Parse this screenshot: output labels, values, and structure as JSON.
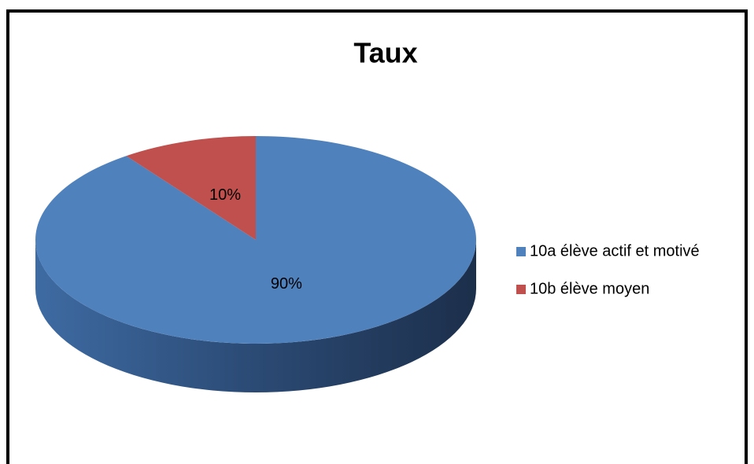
{
  "chart_data": {
    "type": "pie",
    "title": "Taux",
    "categories": [
      "10a élève actif et motivé",
      "10b élève moyen"
    ],
    "values": [
      90,
      10
    ],
    "value_labels": [
      "90%",
      "10%"
    ],
    "colors": [
      "#4f81bd",
      "#c0504d"
    ],
    "legend": "right"
  }
}
